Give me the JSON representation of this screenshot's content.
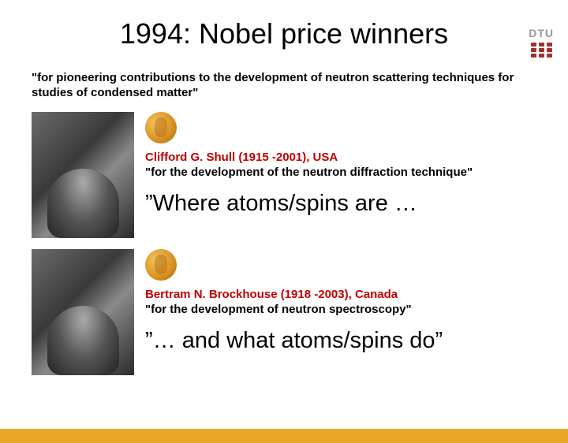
{
  "logo": {
    "text": "DTU"
  },
  "title": "1994: Nobel price winners",
  "main_citation": "\"for pioneering contributions to the development of neutron scattering techniques for studies of condensed matter\"",
  "persons": [
    {
      "name": "Clifford G. Shull (1915 -2001), USA",
      "citation": "\"for the development of the neutron diffraction technique\"",
      "quote": "”Where atoms/spins are …"
    },
    {
      "name": "Bertram N. Brockhouse (1918 -2003), Canada",
      "citation": "\"for the development of neutron spectroscopy\"",
      "quote": "”… and what atoms/spins do”"
    }
  ],
  "colors": {
    "name_color": "#c00000",
    "footer_color": "#e8a825",
    "medal_gold": "#d89020"
  }
}
